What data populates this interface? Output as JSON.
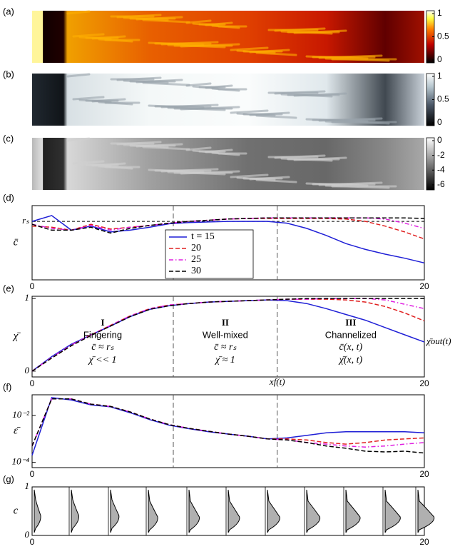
{
  "chart_data": [
    {
      "type": "image",
      "label": "(a)",
      "colormap": "hot",
      "clim": [
        0,
        1
      ],
      "cticks": [
        0,
        0.5,
        1
      ]
    },
    {
      "type": "image",
      "label": "(b)",
      "colormap": "bone",
      "clim": [
        0,
        1
      ],
      "cticks": [
        0,
        0.5,
        1
      ]
    },
    {
      "type": "image",
      "label": "(c)",
      "colormap": "gray",
      "clim": [
        -6.3,
        0
      ],
      "cticks": [
        0,
        -2,
        -4,
        -6
      ]
    },
    {
      "type": "line",
      "label": "(d)",
      "ylabel": "c̄",
      "xlim": [
        0,
        20
      ],
      "ylim": [
        0,
        1.27
      ],
      "xticks": [
        0,
        20
      ],
      "yticks": [
        {
          "value": 1,
          "label": "rₛ"
        }
      ],
      "hlines": [
        1
      ],
      "vlines": [
        7.2,
        12.5
      ],
      "legend": "bottom",
      "x": [
        0,
        1,
        2,
        3,
        4,
        5,
        6,
        7,
        8,
        9,
        10,
        11,
        12,
        13,
        14,
        15,
        16,
        17,
        18,
        19,
        20
      ],
      "series": [
        {
          "name": "t = 15",
          "color": "#1f1fd6",
          "style": "solid",
          "values": [
            1.0,
            1.1,
            0.85,
            0.92,
            0.82,
            0.85,
            0.9,
            0.96,
            0.98,
            0.99,
            1.0,
            1.0,
            1.0,
            0.97,
            0.88,
            0.76,
            0.62,
            0.52,
            0.44,
            0.37,
            0.29
          ]
        },
        {
          "name": "20",
          "color": "#e02020",
          "style": "dashed",
          "values": [
            0.92,
            0.9,
            0.85,
            0.95,
            0.87,
            0.9,
            0.93,
            0.97,
            1.0,
            1.02,
            1.04,
            1.05,
            1.05,
            1.05,
            1.05,
            1.05,
            1.04,
            1.0,
            0.92,
            0.82,
            0.7
          ]
        },
        {
          "name": "25",
          "color": "#e020e0",
          "style": "dashdot",
          "values": [
            0.95,
            0.88,
            0.85,
            0.93,
            0.85,
            0.9,
            0.93,
            0.97,
            1.0,
            1.02,
            1.04,
            1.05,
            1.06,
            1.06,
            1.06,
            1.06,
            1.06,
            1.06,
            1.04,
            0.97,
            0.88
          ]
        },
        {
          "name": "30",
          "color": "#000000",
          "style": "dashed",
          "values": [
            0.95,
            0.85,
            0.85,
            0.9,
            0.8,
            0.88,
            0.93,
            0.97,
            1.0,
            1.02,
            1.04,
            1.05,
            1.06,
            1.06,
            1.06,
            1.06,
            1.06,
            1.06,
            1.06,
            1.06,
            1.05
          ]
        }
      ]
    },
    {
      "type": "line",
      "label": "(e)",
      "ylabel": "χ̄",
      "xlim": [
        0,
        20
      ],
      "ylim": [
        -0.08,
        1.03
      ],
      "xticks": [
        0,
        20
      ],
      "yticks": [
        0,
        1
      ],
      "vlines": [
        7.2,
        12.5
      ],
      "xf_label": "xf(t)",
      "out_label": "χ̄out(t)",
      "regions": [
        {
          "numeral": "I",
          "name": "Fingering",
          "c": "c̄ ≈ rₛ",
          "chi": "χ̄ << 1"
        },
        {
          "numeral": "II",
          "name": "Well-mixed",
          "c": "c̄ ≈ rₛ",
          "chi": "χ̄ ≈ 1"
        },
        {
          "numeral": "III",
          "name": "Channelized",
          "c": "c̄(x, t)",
          "chi": "χ̄(x, t)"
        }
      ],
      "x": [
        0,
        1,
        2,
        3,
        4,
        5,
        6,
        7,
        8,
        9,
        10,
        11,
        12,
        13,
        14,
        15,
        16,
        17,
        18,
        19,
        20
      ],
      "series": [
        {
          "color": "#1f1fd6",
          "style": "solid",
          "values": [
            0,
            0.2,
            0.37,
            0.5,
            0.62,
            0.75,
            0.85,
            0.9,
            0.93,
            0.95,
            0.96,
            0.97,
            0.98,
            0.97,
            0.93,
            0.86,
            0.78,
            0.7,
            0.6,
            0.5,
            0.4
          ]
        },
        {
          "color": "#e02020",
          "style": "dashed",
          "values": [
            0,
            0.18,
            0.35,
            0.5,
            0.63,
            0.76,
            0.86,
            0.91,
            0.93,
            0.95,
            0.96,
            0.97,
            0.98,
            0.99,
            0.99,
            0.99,
            0.98,
            0.95,
            0.89,
            0.8,
            0.69
          ]
        },
        {
          "color": "#e020e0",
          "style": "dashdot",
          "values": [
            0,
            0.19,
            0.36,
            0.5,
            0.63,
            0.76,
            0.86,
            0.91,
            0.93,
            0.95,
            0.96,
            0.97,
            0.98,
            0.99,
            0.99,
            1.0,
            1.0,
            1.0,
            0.98,
            0.92,
            0.86
          ]
        },
        {
          "color": "#000000",
          "style": "dashed",
          "values": [
            0,
            0.18,
            0.35,
            0.49,
            0.62,
            0.75,
            0.85,
            0.9,
            0.93,
            0.95,
            0.96,
            0.97,
            0.98,
            0.99,
            1.0,
            1.0,
            1.0,
            1.0,
            1.0,
            1.0,
            1.0
          ]
        }
      ]
    },
    {
      "type": "line",
      "label": "(f)",
      "ylabel": "ε̄",
      "log": true,
      "xlim": [
        0,
        20
      ],
      "ylim": [
        6e-05,
        0.075
      ],
      "xticks": [
        0,
        20
      ],
      "yticks": [
        {
          "value": 0.0001,
          "label": "10⁻⁴"
        },
        {
          "value": 0.01,
          "label": "10⁻²"
        }
      ],
      "vlines": [
        7.2,
        12.5
      ],
      "x": [
        0,
        1,
        2,
        3,
        4,
        5,
        6,
        7,
        8,
        9,
        10,
        11,
        12,
        13,
        14,
        15,
        16,
        17,
        18,
        19,
        20
      ],
      "series": [
        {
          "color": "#1f1fd6",
          "style": "solid",
          "values": [
            0.0002,
            0.057,
            0.045,
            0.028,
            0.023,
            0.013,
            0.0066,
            0.0038,
            0.0027,
            0.002,
            0.0016,
            0.0013,
            0.001,
            0.0011,
            0.0014,
            0.0018,
            0.002,
            0.002,
            0.002,
            0.002,
            0.0018
          ]
        },
        {
          "color": "#e02020",
          "style": "dashed",
          "values": [
            0.0005,
            0.05,
            0.05,
            0.03,
            0.024,
            0.014,
            0.007,
            0.004,
            0.0028,
            0.0021,
            0.0016,
            0.0013,
            0.001,
            0.001,
            0.0009,
            0.0007,
            0.0006,
            0.0007,
            0.0009,
            0.001,
            0.0011
          ]
        },
        {
          "color": "#e020e0",
          "style": "dashdot",
          "values": [
            0.0005,
            0.05,
            0.05,
            0.03,
            0.024,
            0.014,
            0.007,
            0.004,
            0.0028,
            0.0021,
            0.0016,
            0.0013,
            0.001,
            0.0009,
            0.0007,
            0.0006,
            0.0005,
            0.00045,
            0.0005,
            0.0006,
            0.0007
          ]
        },
        {
          "color": "#000000",
          "style": "dashed",
          "values": [
            0.0005,
            0.05,
            0.05,
            0.03,
            0.024,
            0.014,
            0.007,
            0.004,
            0.0028,
            0.0021,
            0.0016,
            0.0013,
            0.001,
            0.0009,
            0.0007,
            0.0005,
            0.0004,
            0.0003,
            0.00028,
            0.0003,
            0.00025
          ]
        }
      ]
    },
    {
      "type": "profiles",
      "label": "(g)",
      "ylabel": "c",
      "xlim": [
        0,
        20
      ],
      "ylim": [
        0,
        1
      ],
      "xticks": [
        0,
        20
      ],
      "yticks": [
        0,
        1
      ]
    }
  ]
}
